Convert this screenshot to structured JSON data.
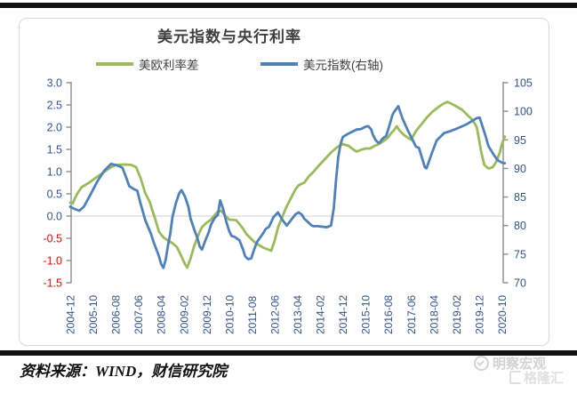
{
  "page": {
    "source_text": "资料来源：WIND，财信研究院",
    "watermark": {
      "brand": "明察宏观",
      "platform": "格隆汇"
    }
  },
  "chart_data": {
    "type": "line",
    "title": "美元指数与央行利率",
    "legend_position": "top",
    "grid": "horizontal line at 0 only",
    "x_unit": "months since 2004-12, monthly series",
    "x_tick_months": [
      0,
      10,
      20,
      30,
      40,
      50,
      60,
      70,
      80,
      90,
      100,
      110,
      120,
      130,
      140,
      150,
      160,
      170,
      180,
      190
    ],
    "x_tick_labels": [
      "2004-12",
      "2005-10",
      "2006-08",
      "2007-06",
      "2008-04",
      "2009-02",
      "2009-12",
      "2010-10",
      "2011-08",
      "2012-06",
      "2013-04",
      "2014-02",
      "2014-12",
      "2015-10",
      "2016-08",
      "2017-06",
      "2018-04",
      "2019-02",
      "2019-12",
      "2020-10"
    ],
    "left_axis": {
      "min": -1.5,
      "max": 3.0,
      "step": 0.5,
      "ticks": [
        "3.0",
        "2.5",
        "2.0",
        "1.5",
        "1.0",
        "0.5",
        "0.0",
        "-0.5",
        "-1.0",
        "-1.5"
      ]
    },
    "right_axis": {
      "min": 70,
      "max": 105,
      "step": 5,
      "ticks": [
        "105",
        "100",
        "95",
        "90",
        "85",
        "80",
        "75",
        "70"
      ]
    },
    "colors": {
      "axis_line": "#8c8c8c",
      "gridline": "#d9d9d9",
      "tick_label": "#31538f",
      "negative_tick_label": "#ff0000",
      "series_spread": "#9bbb59",
      "series_usd": "#4f81bd"
    },
    "series": [
      {
        "name": "美欧利率差",
        "axis": "left",
        "color": "#9bbb59",
        "points": [
          [
            0,
            0.3
          ],
          [
            1,
            0.28
          ],
          [
            3,
            0.5
          ],
          [
            5,
            0.65
          ],
          [
            8,
            0.74
          ],
          [
            12,
            0.89
          ],
          [
            16,
            1.03
          ],
          [
            18,
            1.1
          ],
          [
            20,
            1.15
          ],
          [
            24,
            1.16
          ],
          [
            27,
            1.15
          ],
          [
            29,
            1.1
          ],
          [
            31,
            0.85
          ],
          [
            33,
            0.52
          ],
          [
            35,
            0.32
          ],
          [
            36,
            0.15
          ],
          [
            37.5,
            -0.08
          ],
          [
            39,
            -0.35
          ],
          [
            41,
            -0.48
          ],
          [
            43,
            -0.55
          ],
          [
            45,
            -0.61
          ],
          [
            47,
            -0.7
          ],
          [
            49,
            -0.91
          ],
          [
            50.5,
            -1.08
          ],
          [
            51.5,
            -1.16
          ],
          [
            53,
            -0.95
          ],
          [
            54.5,
            -0.68
          ],
          [
            56,
            -0.48
          ],
          [
            57,
            -0.35
          ],
          [
            58,
            -0.25
          ],
          [
            60,
            -0.15
          ],
          [
            62,
            -0.08
          ],
          [
            63.5,
            0.02
          ],
          [
            65,
            0.1
          ],
          [
            66.5,
            0.12
          ],
          [
            68,
            0.02
          ],
          [
            70,
            -0.08
          ],
          [
            73,
            -0.09
          ],
          [
            74.5,
            -0.18
          ],
          [
            76,
            -0.28
          ],
          [
            77.5,
            -0.4
          ],
          [
            79,
            -0.48
          ],
          [
            81,
            -0.58
          ],
          [
            83,
            -0.65
          ],
          [
            85,
            -0.71
          ],
          [
            87,
            -0.75
          ],
          [
            88.5,
            -0.78
          ],
          [
            90,
            -0.55
          ],
          [
            91.5,
            -0.25
          ],
          [
            93.5,
            0
          ],
          [
            95,
            0.19
          ],
          [
            97,
            0.39
          ],
          [
            99,
            0.59
          ],
          [
            100.5,
            0.69
          ],
          [
            102,
            0.73
          ],
          [
            103,
            0.75
          ],
          [
            105,
            0.89
          ],
          [
            107,
            0.99
          ],
          [
            109,
            1.11
          ],
          [
            111,
            1.22
          ],
          [
            113,
            1.33
          ],
          [
            115,
            1.44
          ],
          [
            117.5,
            1.55
          ],
          [
            120,
            1.62
          ],
          [
            122.5,
            1.58
          ],
          [
            124,
            1.52
          ],
          [
            126,
            1.45
          ],
          [
            128,
            1.49
          ],
          [
            130,
            1.52
          ],
          [
            132,
            1.52
          ],
          [
            134,
            1.58
          ],
          [
            136,
            1.62
          ],
          [
            138.5,
            1.71
          ],
          [
            140,
            1.77
          ],
          [
            141,
            1.85
          ],
          [
            142.5,
            1.93
          ],
          [
            143.7,
            2.02
          ],
          [
            145,
            1.92
          ],
          [
            147,
            1.82
          ],
          [
            149,
            1.75
          ],
          [
            150,
            1.72
          ],
          [
            152.3,
            1.92
          ],
          [
            155,
            2.09
          ],
          [
            157,
            2.22
          ],
          [
            159.5,
            2.35
          ],
          [
            162,
            2.45
          ],
          [
            164,
            2.52
          ],
          [
            166,
            2.57
          ],
          [
            168,
            2.52
          ],
          [
            170.5,
            2.45
          ],
          [
            172.5,
            2.39
          ],
          [
            174.5,
            2.29
          ],
          [
            176.5,
            2.19
          ],
          [
            178,
            2.09
          ],
          [
            179,
            1.99
          ],
          [
            181,
            1.42
          ],
          [
            182.3,
            1.15
          ],
          [
            183.6,
            1.09
          ],
          [
            184.3,
            1.07
          ],
          [
            186,
            1.1
          ],
          [
            187.5,
            1.22
          ],
          [
            189,
            1.42
          ],
          [
            190,
            1.62
          ],
          [
            191.3,
            1.79
          ]
        ]
      },
      {
        "name": "美元指数(右轴)",
        "axis": "right",
        "color": "#4f81bd",
        "points": [
          [
            0,
            83.3
          ],
          [
            2,
            82.9
          ],
          [
            4,
            82.6
          ],
          [
            6,
            83.3
          ],
          [
            9,
            85.5
          ],
          [
            12,
            87.8
          ],
          [
            15,
            89.6
          ],
          [
            18,
            90.8
          ],
          [
            20,
            90.6
          ],
          [
            22,
            90.3
          ],
          [
            23,
            90.1
          ],
          [
            25,
            88
          ],
          [
            26,
            86.9
          ],
          [
            28,
            86.4
          ],
          [
            29.5,
            86.1
          ],
          [
            31,
            83.8
          ],
          [
            33,
            81
          ],
          [
            34,
            80
          ],
          [
            35.5,
            78.6
          ],
          [
            37,
            76.8
          ],
          [
            39,
            74.7
          ],
          [
            40,
            73.3
          ],
          [
            41,
            72.6
          ],
          [
            42,
            74
          ],
          [
            43,
            76.5
          ],
          [
            44,
            78.5
          ],
          [
            45,
            81.5
          ],
          [
            46.5,
            83.9
          ],
          [
            48,
            85.7
          ],
          [
            49,
            86.2
          ],
          [
            50.5,
            85.1
          ],
          [
            52,
            83.3
          ],
          [
            53,
            81.2
          ],
          [
            54.5,
            79.4
          ],
          [
            56,
            77.8
          ],
          [
            57,
            76.3
          ],
          [
            58,
            75.8
          ],
          [
            59.5,
            77.4
          ],
          [
            61,
            78.9
          ],
          [
            62,
            80.2
          ],
          [
            63.5,
            81.3
          ],
          [
            65,
            81.9
          ],
          [
            66,
            84.4
          ],
          [
            67.3,
            82.9
          ],
          [
            68.6,
            80.8
          ],
          [
            70,
            79
          ],
          [
            71,
            78.2
          ],
          [
            72.5,
            78
          ],
          [
            73.5,
            77.7
          ],
          [
            74.5,
            77.4
          ],
          [
            76,
            75.9
          ],
          [
            77,
            74.6
          ],
          [
            78.4,
            74.1
          ],
          [
            79.7,
            74.3
          ],
          [
            81,
            75.9
          ],
          [
            82.3,
            77.2
          ],
          [
            83.6,
            77.9
          ],
          [
            85,
            78.7
          ],
          [
            86,
            79.4
          ],
          [
            87.5,
            79.8
          ],
          [
            89.5,
            81.5
          ],
          [
            91.4,
            82.3
          ],
          [
            93.4,
            81
          ],
          [
            95.3,
            80
          ],
          [
            97.3,
            81
          ],
          [
            99.2,
            82
          ],
          [
            100.5,
            82.3
          ],
          [
            102,
            81.9
          ],
          [
            103,
            81.2
          ],
          [
            104.4,
            80.7
          ],
          [
            106,
            80.1
          ],
          [
            107,
            79.9
          ],
          [
            109,
            79.9
          ],
          [
            111,
            79.8
          ],
          [
            113,
            79.7
          ],
          [
            114.8,
            80
          ],
          [
            116,
            83
          ],
          [
            117,
            88
          ],
          [
            118,
            92
          ],
          [
            119,
            94.3
          ],
          [
            120,
            95.5
          ],
          [
            122,
            96
          ],
          [
            124,
            96.4
          ],
          [
            126,
            96.8
          ],
          [
            128,
            96.9
          ],
          [
            130,
            97.3
          ],
          [
            131.2,
            97.4
          ],
          [
            132.5,
            96.8
          ],
          [
            133.1,
            96
          ],
          [
            134.4,
            95
          ],
          [
            135.5,
            94.5
          ],
          [
            136.4,
            94.6
          ],
          [
            137,
            95
          ],
          [
            138.3,
            95.5
          ],
          [
            139,
            95.6
          ],
          [
            140.5,
            97.5
          ],
          [
            141.8,
            99.3
          ],
          [
            142.4,
            99.8
          ],
          [
            144.4,
            100.9
          ],
          [
            146.3,
            98.7
          ],
          [
            148.3,
            96.9
          ],
          [
            150.2,
            95.4
          ],
          [
            152.2,
            93.8
          ],
          [
            153.5,
            93.6
          ],
          [
            156.1,
            90.2
          ],
          [
            156.8,
            90
          ],
          [
            159.4,
            92.9
          ],
          [
            161.3,
            94.9
          ],
          [
            164.6,
            96.2
          ],
          [
            167.2,
            96.5
          ],
          [
            170.4,
            97
          ],
          [
            174.4,
            97.7
          ],
          [
            178.9,
            98.8
          ],
          [
            180.2,
            98.9
          ],
          [
            182.8,
            95.7
          ],
          [
            184.1,
            93.9
          ],
          [
            186.1,
            92.6
          ],
          [
            188,
            91.5
          ],
          [
            190,
            91
          ],
          [
            191.3,
            90.9
          ]
        ]
      }
    ]
  }
}
